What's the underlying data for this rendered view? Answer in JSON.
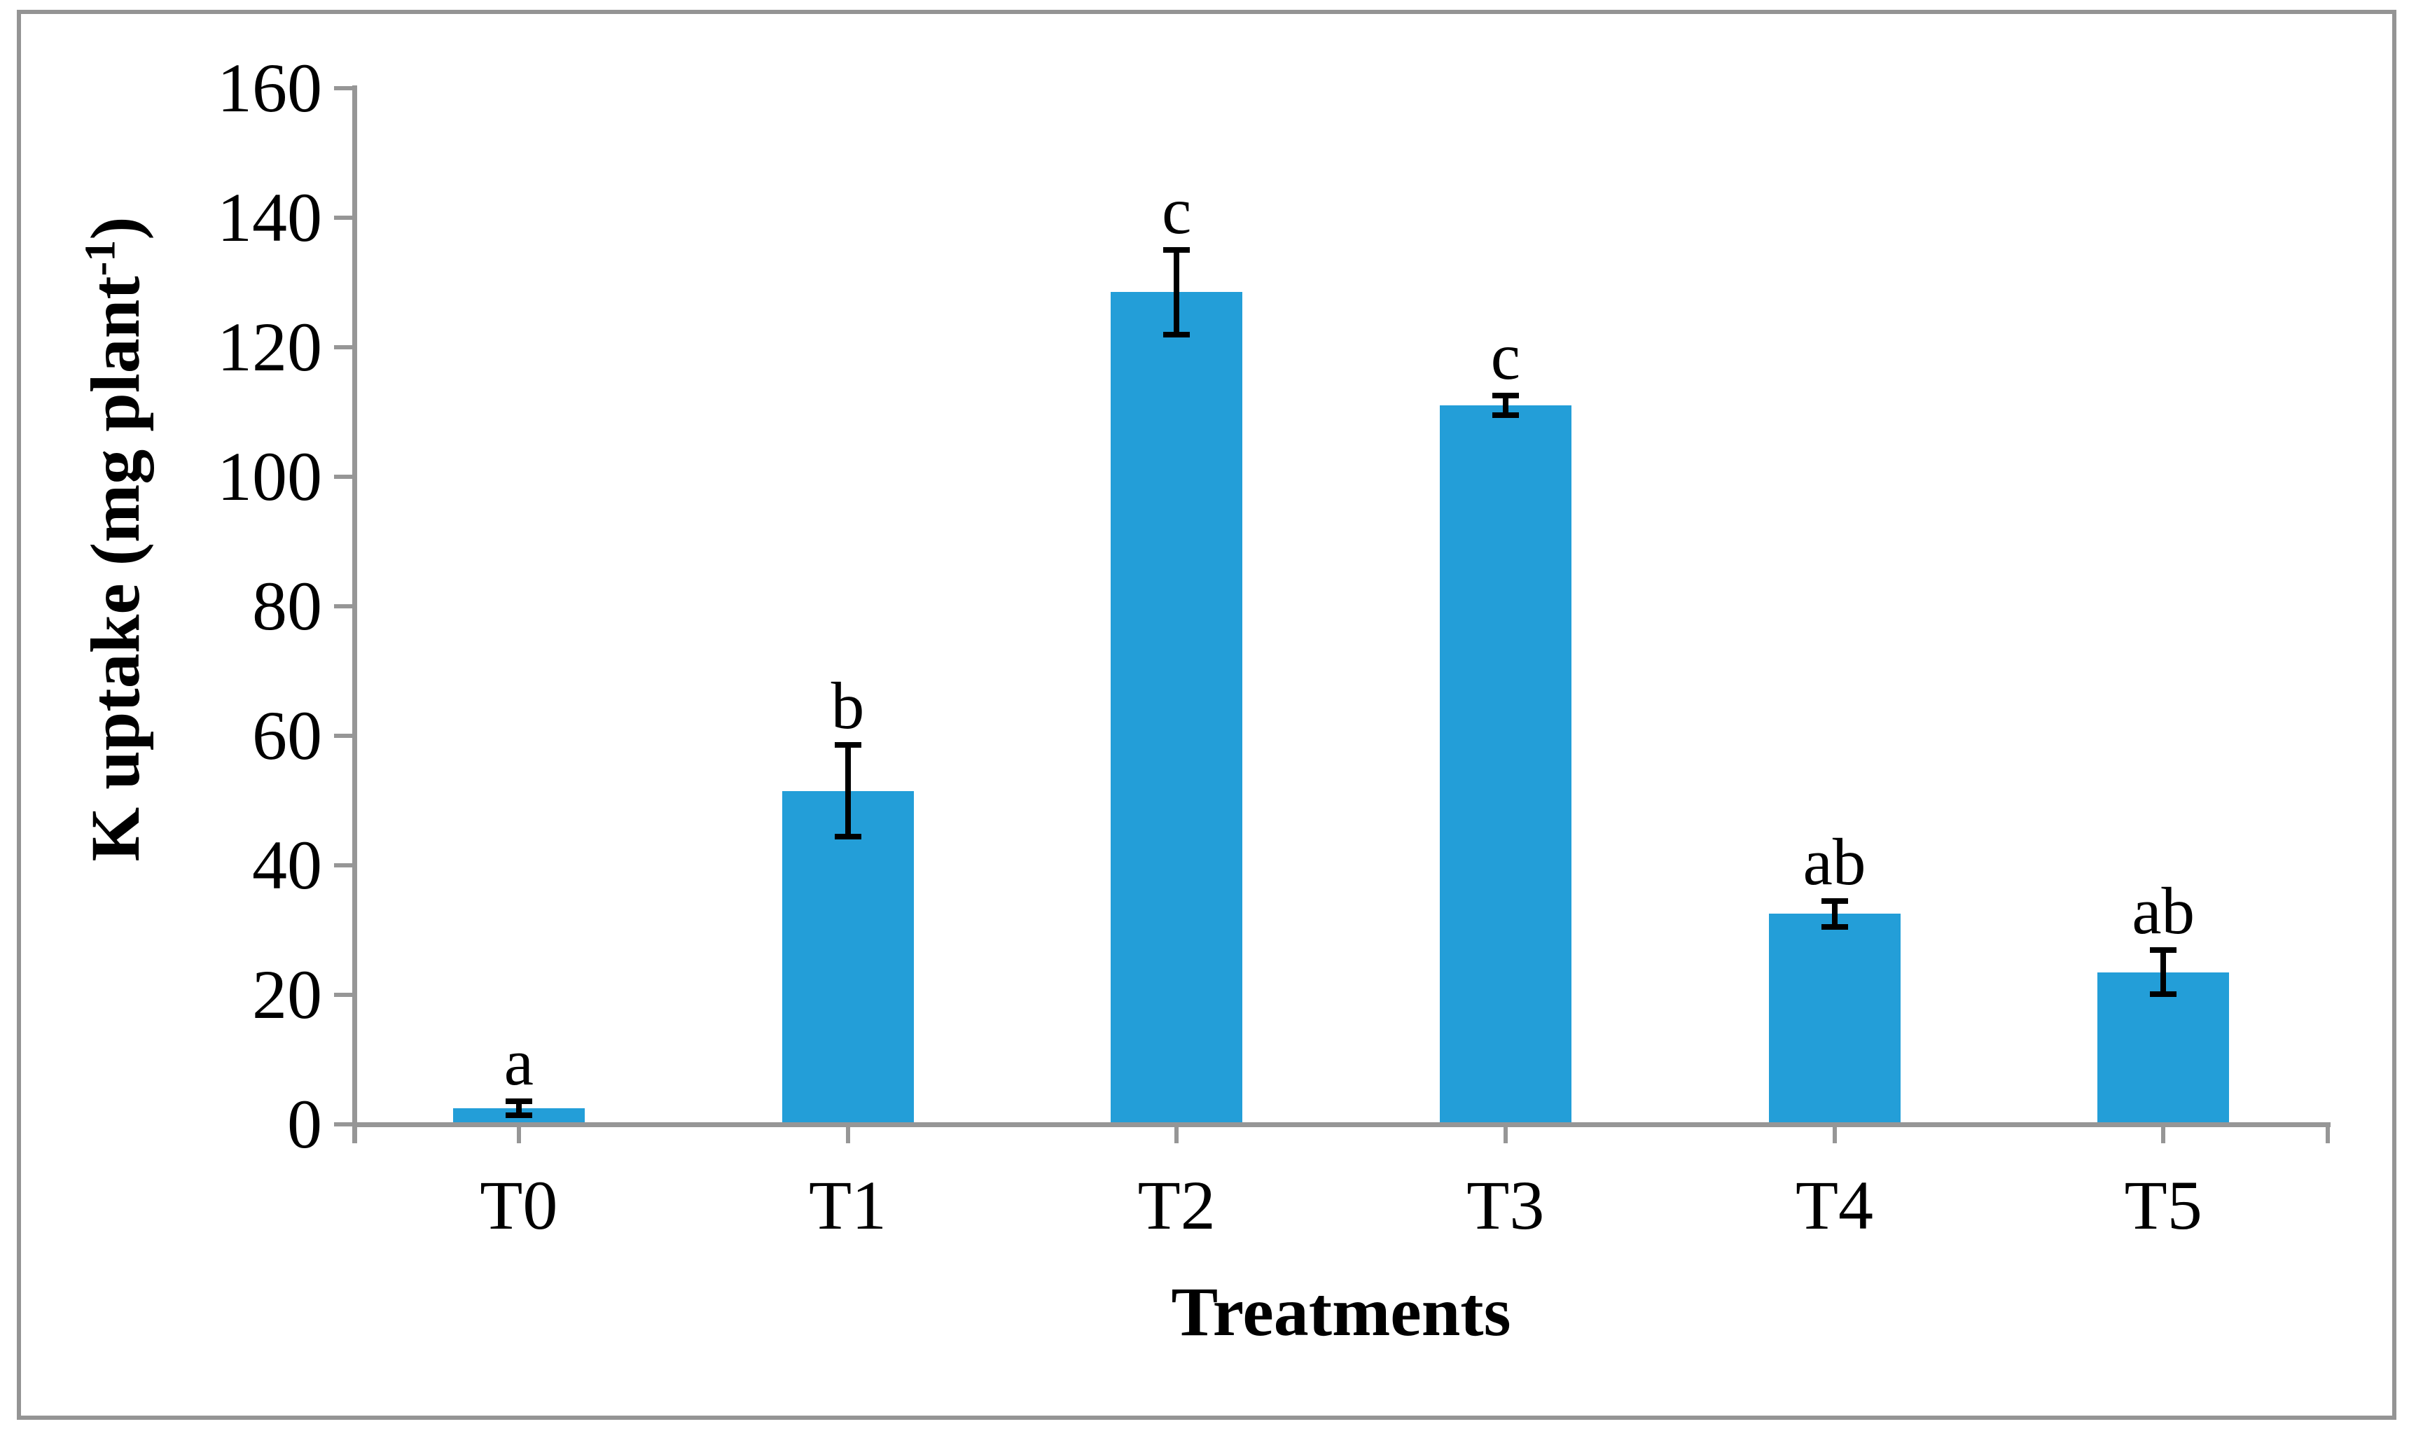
{
  "figure": {
    "background": "#ffffff",
    "frame_color": "#949494"
  },
  "chart_data": {
    "type": "bar",
    "title": "",
    "categories": [
      "T0",
      "T1",
      "T2",
      "T3",
      "T4",
      "T5"
    ],
    "values": [
      2.5,
      51.5,
      128.5,
      111,
      32.5,
      23.5
    ],
    "error_bars": [
      1.1,
      7.1,
      6.5,
      1.5,
      2.0,
      3.4
    ],
    "sig_letters": [
      "a",
      "b",
      "c",
      "c",
      "ab",
      "ab"
    ],
    "xlabel": "Treatments",
    "ylabel": {
      "prefix": "K uptake (mg plant",
      "superscript": "-1",
      "suffix": ")"
    },
    "ylim": [
      0,
      160
    ],
    "ytick_interval": 20,
    "yticks": [
      0,
      20,
      40,
      60,
      80,
      100,
      120,
      140,
      160
    ],
    "grid": false,
    "legend": null,
    "bar_color": "#239ED8",
    "axis_color": "#969696",
    "error_bar_color": "#000000",
    "text_color": "#000000"
  }
}
